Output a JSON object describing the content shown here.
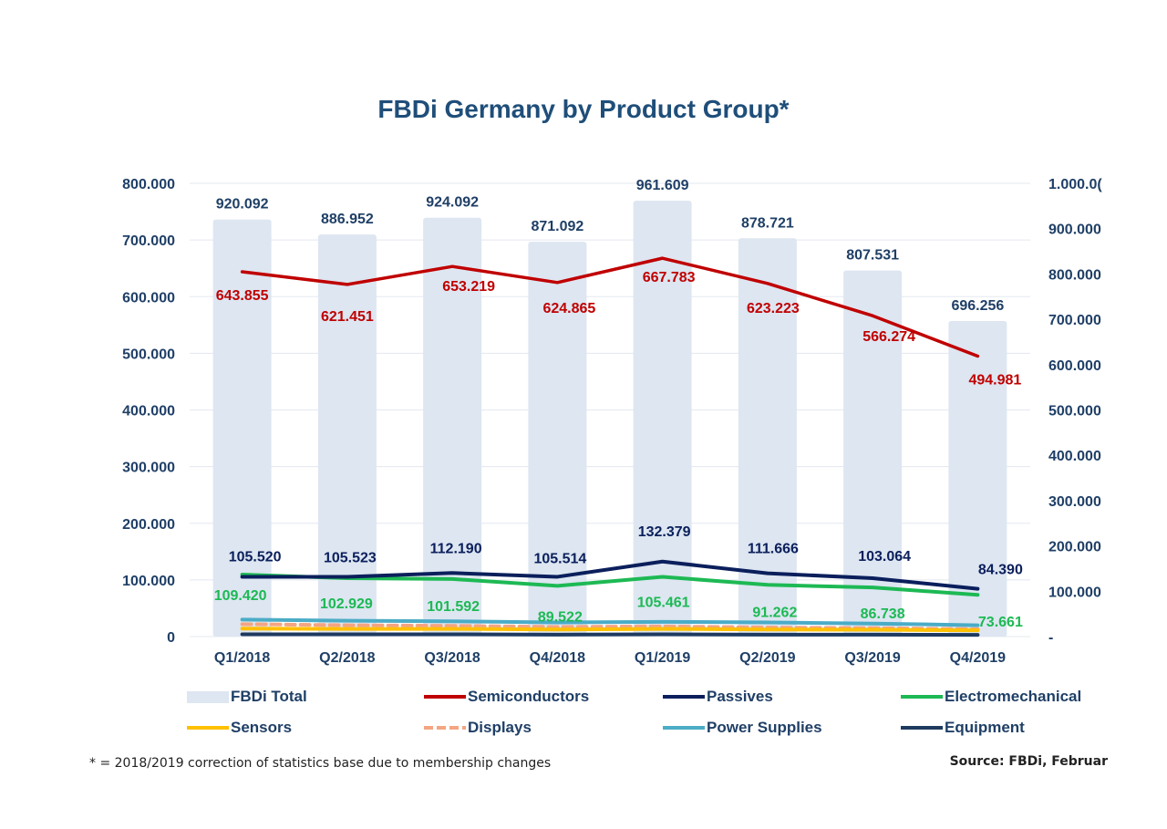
{
  "title": "FBDi Germany by Product Group*",
  "footnote": "* = 2018/2019 correction of statistics base due to membership changes",
  "source": "Source: FBDi, Februar",
  "chart_data": {
    "type": "bar",
    "categories": [
      "Q1/2018",
      "Q2/2018",
      "Q3/2018",
      "Q4/2018",
      "Q1/2019",
      "Q2/2019",
      "Q3/2019",
      "Q4/2019"
    ],
    "left_axis": {
      "ylim": [
        0,
        800000
      ],
      "ticks": [
        0,
        100000,
        200000,
        300000,
        400000,
        500000,
        600000,
        700000,
        800000
      ],
      "tick_labels": [
        "0",
        "100.000",
        "200.000",
        "300.000",
        "400.000",
        "500.000",
        "600.000",
        "700.000",
        "800.000"
      ]
    },
    "right_axis": {
      "ylim": [
        0,
        1000000
      ],
      "ticks": [
        0,
        100000,
        200000,
        300000,
        400000,
        500000,
        600000,
        700000,
        800000,
        900000,
        1000000
      ],
      "tick_labels": [
        "-",
        "100.000",
        "200.000",
        "300.000",
        "400.000",
        "500.000",
        "600.000",
        "700.000",
        "800.000",
        "900.000",
        "1.000.0("
      ]
    },
    "bars": {
      "name": "FBDi Total",
      "axis": "right",
      "color": "#dde6f1",
      "values": [
        920092,
        886952,
        924092,
        871092,
        961609,
        878721,
        807531,
        696256
      ],
      "labels": [
        "920.092",
        "886.952",
        "924.092",
        "871.092",
        "961.609",
        "878.721",
        "807.531",
        "696.256"
      ]
    },
    "series": [
      {
        "name": "Semiconductors",
        "axis": "left",
        "color": "#c00000",
        "style": "solid",
        "values": [
          643855,
          621451,
          653219,
          624865,
          667783,
          623223,
          566274,
          494981
        ],
        "labels": [
          "643.855",
          "621.451",
          "653.219",
          "624.865",
          "667.783",
          "623.223",
          "566.274",
          "494.981"
        ]
      },
      {
        "name": "Passives",
        "axis": "left",
        "color": "#0b1f5c",
        "style": "solid",
        "values": [
          105520,
          105523,
          112190,
          105514,
          132379,
          111666,
          103064,
          84390
        ],
        "labels": [
          "105.520",
          "105.523",
          "112.190",
          "105.514",
          "132.379",
          "111.666",
          "103.064",
          "84.390"
        ]
      },
      {
        "name": "Electromechanical",
        "axis": "left",
        "color": "#1db954",
        "style": "solid",
        "values": [
          109420,
          102929,
          101592,
          89522,
          105461,
          91262,
          86738,
          73661
        ],
        "labels": [
          "109.420",
          "102.929",
          "101.592",
          "89.522",
          "105.461",
          "91.262",
          "86.738",
          "73.661"
        ]
      },
      {
        "name": "Sensors",
        "axis": "left",
        "color": "#ffc000",
        "style": "solid",
        "values": [
          14000,
          13500,
          13500,
          12500,
          13500,
          12500,
          12000,
          11000
        ]
      },
      {
        "name": "Displays",
        "axis": "left",
        "color": "#f4a582",
        "style": "dashed",
        "values": [
          22000,
          20000,
          19000,
          17000,
          18000,
          16000,
          15000,
          13000
        ]
      },
      {
        "name": "Power Supplies",
        "axis": "left",
        "color": "#4bacc6",
        "style": "solid",
        "values": [
          30000,
          28000,
          27000,
          25000,
          26000,
          25000,
          23000,
          20000
        ]
      },
      {
        "name": "Equipment",
        "axis": "left",
        "color": "#1f3a5f",
        "style": "solid",
        "values": [
          4000,
          4000,
          4000,
          3500,
          4000,
          3500,
          3500,
          3000
        ]
      }
    ],
    "legend": [
      {
        "label": "FBDi Total",
        "kind": "bar",
        "color": "#dde6f1"
      },
      {
        "label": "Semiconductors",
        "kind": "line",
        "color": "#c00000"
      },
      {
        "label": "Passives",
        "kind": "line",
        "color": "#0b1f5c"
      },
      {
        "label": "Electromechanical",
        "kind": "line",
        "color": "#1db954"
      },
      {
        "label": "Sensors",
        "kind": "line",
        "color": "#ffc000"
      },
      {
        "label": "Displays",
        "kind": "dashed",
        "color": "#f4a582"
      },
      {
        "label": "Power Supplies",
        "kind": "line",
        "color": "#4bacc6"
      },
      {
        "label": "Equipment",
        "kind": "line",
        "color": "#1f3a5f"
      }
    ],
    "grid": true,
    "legend_position": "bottom"
  }
}
